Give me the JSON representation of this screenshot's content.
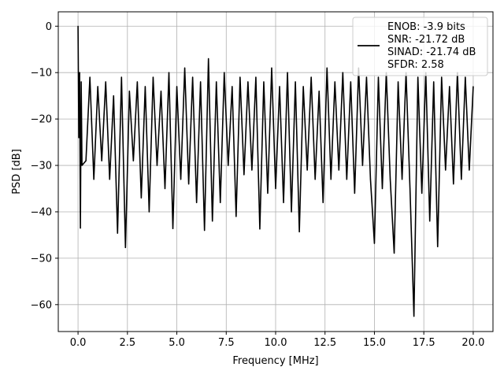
{
  "chart_data": {
    "type": "line",
    "title": "",
    "xlabel": "Frequency [MHz]",
    "ylabel": "PSD [dB]",
    "xlim": [
      -1.0,
      21.0
    ],
    "ylim": [
      -65.8,
      3.1
    ],
    "xticks": [
      0.0,
      2.5,
      5.0,
      7.5,
      10.0,
      12.5,
      15.0,
      17.5,
      20.0
    ],
    "xtick_labels": [
      "0.0",
      "2.5",
      "5.0",
      "7.5",
      "10.0",
      "12.5",
      "15.0",
      "17.5",
      "20.0"
    ],
    "yticks": [
      0,
      -10,
      -20,
      -30,
      -40,
      -50,
      -60
    ],
    "ytick_labels": [
      "0",
      "−10",
      "−20",
      "−30",
      "−40",
      "−50",
      "−60"
    ],
    "grid": true,
    "legend_position": "top-right",
    "legend_lines": [
      "ENOB: -3.9 bits",
      "SNR: -21.72 dB",
      "SINAD: -21.74 dB",
      "SFDR: 2.58"
    ],
    "series": [
      {
        "color": "#000000",
        "x": [
          0.0,
          0.04,
          0.08,
          0.12,
          0.16,
          0.2,
          0.4,
          0.6,
          0.8,
          1.0,
          1.2,
          1.4,
          1.6,
          1.8,
          2.0,
          2.2,
          2.4,
          2.6,
          2.8,
          3.0,
          3.2,
          3.4,
          3.6,
          3.8,
          4.0,
          4.2,
          4.4,
          4.6,
          4.8,
          5.0,
          5.2,
          5.4,
          5.6,
          5.8,
          6.0,
          6.2,
          6.4,
          6.6,
          6.8,
          7.0,
          7.2,
          7.4,
          7.6,
          7.8,
          8.0,
          8.2,
          8.4,
          8.6,
          8.8,
          9.0,
          9.2,
          9.4,
          9.6,
          9.8,
          10.0,
          10.2,
          10.4,
          10.6,
          10.8,
          11.0,
          11.2,
          11.4,
          11.6,
          11.8,
          12.0,
          12.2,
          12.4,
          12.6,
          12.8,
          13.0,
          13.2,
          13.4,
          13.6,
          13.8,
          14.0,
          14.2,
          14.4,
          14.6,
          14.8,
          15.0,
          15.2,
          15.4,
          15.6,
          15.8,
          16.0,
          16.2,
          16.4,
          16.6,
          16.8,
          17.0,
          17.2,
          17.4,
          17.6,
          17.8,
          18.0,
          18.2,
          18.4,
          18.6,
          18.8,
          19.0,
          19.2,
          19.4,
          19.6,
          19.8,
          20.0
        ],
        "y": [
          0.0,
          -24.0,
          -10.0,
          -43.5,
          -12.0,
          -30.0,
          -29.0,
          -11.0,
          -33.0,
          -13.0,
          -29.0,
          -12.0,
          -33.0,
          -15.0,
          -44.6,
          -11.0,
          -47.7,
          -14.0,
          -29.0,
          -12.0,
          -37.0,
          -13.0,
          -40.0,
          -11.0,
          -30.0,
          -14.0,
          -35.0,
          -10.0,
          -43.6,
          -13.0,
          -33.0,
          -9.0,
          -34.0,
          -11.0,
          -38.0,
          -12.0,
          -44.0,
          -7.0,
          -42.0,
          -12.0,
          -38.0,
          -10.0,
          -30.0,
          -13.0,
          -41.0,
          -11.0,
          -32.0,
          -12.0,
          -31.0,
          -11.0,
          -43.7,
          -12.0,
          -36.0,
          -9.0,
          -35.0,
          -13.0,
          -38.0,
          -10.0,
          -40.0,
          -12.0,
          -44.3,
          -13.0,
          -31.0,
          -11.0,
          -33.0,
          -14.0,
          -38.0,
          -9.0,
          -33.0,
          -12.0,
          -31.0,
          -10.0,
          -33.0,
          -12.0,
          -36.0,
          -9.0,
          -30.0,
          -11.0,
          -33.0,
          -46.8,
          -11.0,
          -35.0,
          -10.0,
          -33.0,
          -48.9,
          -12.0,
          -33.0,
          -10.0,
          -35.0,
          -62.5,
          -11.0,
          -36.0,
          -10.0,
          -42.0,
          -12.0,
          -47.5,
          -11.0,
          -31.0,
          -13.0,
          -34.0,
          -10.0,
          -33.0,
          -11.0,
          -31.0,
          -13.0
        ]
      }
    ]
  }
}
